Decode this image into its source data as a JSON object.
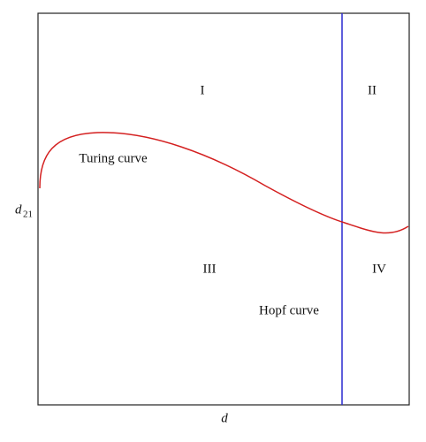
{
  "regions": [
    "I",
    "II",
    "III",
    "IV"
  ],
  "curves": {
    "turing": "Turing curve",
    "hopf": "Hopf curve"
  },
  "axes": {
    "x_label": "d",
    "y_label": "d",
    "y_label_sub": "21"
  }
}
